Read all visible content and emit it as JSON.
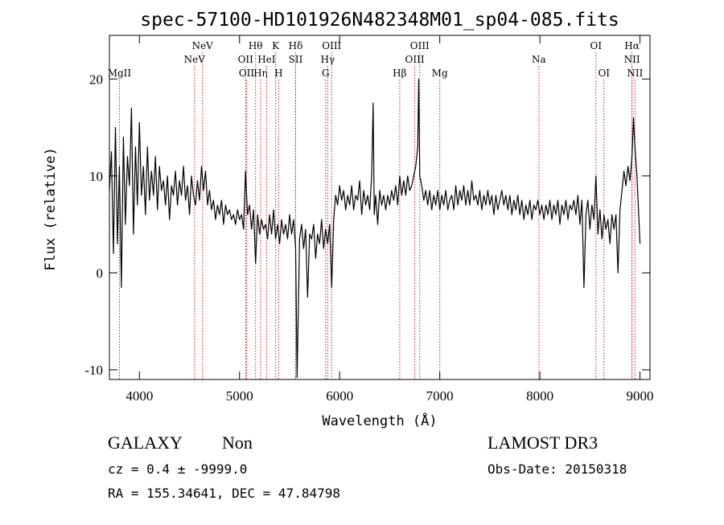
{
  "chart_data": {
    "type": "line",
    "title": "spec-57100-HD101926N482348M01_sp04-085.fits",
    "xlabel": "Wavelength (Å)",
    "ylabel": "Flux (relative)",
    "xlim": [
      3700,
      9100
    ],
    "ylim": [
      -11,
      24.5
    ],
    "xticks": [
      4000,
      5000,
      6000,
      7000,
      8000,
      9000
    ],
    "yticks": [
      -10,
      0,
      10,
      20
    ],
    "grid": false,
    "series": [
      {
        "color": "#000000",
        "points": [
          [
            3700,
            8.5
          ],
          [
            3720,
            12.5
          ],
          [
            3740,
            2.0
          ],
          [
            3760,
            15.0
          ],
          [
            3780,
            3.0
          ],
          [
            3800,
            11.0
          ],
          [
            3820,
            -1.5
          ],
          [
            3840,
            14.0
          ],
          [
            3860,
            5.0
          ],
          [
            3880,
            12.0
          ],
          [
            3900,
            9.0
          ],
          [
            3920,
            17.0
          ],
          [
            3940,
            4.0
          ],
          [
            3960,
            13.0
          ],
          [
            3980,
            7.0
          ],
          [
            4000,
            15.5
          ],
          [
            4020,
            8.0
          ],
          [
            4040,
            11.0
          ],
          [
            4060,
            6.0
          ],
          [
            4080,
            13.0
          ],
          [
            4100,
            7.5
          ],
          [
            4120,
            10.5
          ],
          [
            4140,
            8.0
          ],
          [
            4160,
            12.0
          ],
          [
            4180,
            6.5
          ],
          [
            4200,
            11.0
          ],
          [
            4220,
            8.5
          ],
          [
            4240,
            9.5
          ],
          [
            4260,
            7.0
          ],
          [
            4280,
            10.0
          ],
          [
            4300,
            5.5
          ],
          [
            4320,
            9.0
          ],
          [
            4340,
            8.0
          ],
          [
            4360,
            10.5
          ],
          [
            4380,
            7.0
          ],
          [
            4400,
            9.5
          ],
          [
            4420,
            8.0
          ],
          [
            4440,
            11.0
          ],
          [
            4460,
            7.5
          ],
          [
            4480,
            9.0
          ],
          [
            4500,
            6.0
          ],
          [
            4520,
            10.0
          ],
          [
            4540,
            8.0
          ],
          [
            4560,
            7.0
          ],
          [
            4580,
            9.5
          ],
          [
            4600,
            7.5
          ],
          [
            4620,
            11.0
          ],
          [
            4640,
            8.5
          ],
          [
            4660,
            10.5
          ],
          [
            4680,
            7.0
          ],
          [
            4700,
            8.5
          ],
          [
            4720,
            6.5
          ],
          [
            4740,
            7.5
          ],
          [
            4760,
            5.5
          ],
          [
            4780,
            7.0
          ],
          [
            4800,
            6.0
          ],
          [
            4820,
            7.5
          ],
          [
            4840,
            5.0
          ],
          [
            4860,
            7.0
          ],
          [
            4880,
            6.0
          ],
          [
            4900,
            6.5
          ],
          [
            4920,
            5.5
          ],
          [
            4940,
            6.0
          ],
          [
            4960,
            5.0
          ],
          [
            4980,
            6.5
          ],
          [
            5000,
            5.5
          ],
          [
            5020,
            6.0
          ],
          [
            5040,
            4.5
          ],
          [
            5060,
            10.5
          ],
          [
            5080,
            6.0
          ],
          [
            5100,
            7.0
          ],
          [
            5120,
            4.5
          ],
          [
            5140,
            6.5
          ],
          [
            5160,
            1.0
          ],
          [
            5180,
            6.0
          ],
          [
            5200,
            4.0
          ],
          [
            5220,
            5.5
          ],
          [
            5240,
            4.5
          ],
          [
            5260,
            5.0
          ],
          [
            5280,
            3.5
          ],
          [
            5300,
            6.0
          ],
          [
            5320,
            4.0
          ],
          [
            5340,
            6.5
          ],
          [
            5360,
            3.5
          ],
          [
            5380,
            5.0
          ],
          [
            5400,
            3.0
          ],
          [
            5420,
            5.5
          ],
          [
            5440,
            4.0
          ],
          [
            5460,
            5.0
          ],
          [
            5480,
            3.5
          ],
          [
            5500,
            6.0
          ],
          [
            5520,
            4.0
          ],
          [
            5540,
            5.5
          ],
          [
            5560,
            2.5
          ],
          [
            5575,
            -10.8
          ],
          [
            5585,
            -5.0
          ],
          [
            5600,
            3.5
          ],
          [
            5620,
            5.0
          ],
          [
            5640,
            2.5
          ],
          [
            5660,
            4.5
          ],
          [
            5680,
            -2.5
          ],
          [
            5700,
            4.0
          ],
          [
            5720,
            3.5
          ],
          [
            5740,
            5.0
          ],
          [
            5760,
            1.5
          ],
          [
            5780,
            4.0
          ],
          [
            5800,
            3.0
          ],
          [
            5820,
            5.5
          ],
          [
            5840,
            2.5
          ],
          [
            5860,
            4.5
          ],
          [
            5880,
            3.0
          ],
          [
            5900,
            5.0
          ],
          [
            5920,
            -1.5
          ],
          [
            5940,
            5.5
          ],
          [
            5960,
            8.0
          ],
          [
            5980,
            7.0
          ],
          [
            6000,
            9.0
          ],
          [
            6020,
            7.5
          ],
          [
            6040,
            8.5
          ],
          [
            6060,
            6.5
          ],
          [
            6080,
            8.0
          ],
          [
            6100,
            7.0
          ],
          [
            6120,
            9.0
          ],
          [
            6140,
            6.5
          ],
          [
            6160,
            8.0
          ],
          [
            6180,
            7.5
          ],
          [
            6200,
            9.5
          ],
          [
            6220,
            6.0
          ],
          [
            6240,
            8.5
          ],
          [
            6260,
            7.0
          ],
          [
            6280,
            8.0
          ],
          [
            6300,
            6.5
          ],
          [
            6320,
            10.0
          ],
          [
            6335,
            17.5
          ],
          [
            6345,
            6.0
          ],
          [
            6360,
            8.0
          ],
          [
            6380,
            5.0
          ],
          [
            6400,
            8.5
          ],
          [
            6420,
            7.0
          ],
          [
            6440,
            8.0
          ],
          [
            6460,
            6.5
          ],
          [
            6480,
            8.0
          ],
          [
            6500,
            7.0
          ],
          [
            6520,
            8.5
          ],
          [
            6540,
            7.5
          ],
          [
            6560,
            9.0
          ],
          [
            6580,
            7.0
          ],
          [
            6600,
            10.0
          ],
          [
            6620,
            8.0
          ],
          [
            6640,
            9.5
          ],
          [
            6660,
            8.0
          ],
          [
            6680,
            10.0
          ],
          [
            6700,
            8.5
          ],
          [
            6720,
            9.0
          ],
          [
            6740,
            10.0
          ],
          [
            6760,
            11.0
          ],
          [
            6780,
            13.0
          ],
          [
            6790,
            20.0
          ],
          [
            6800,
            10.0
          ],
          [
            6820,
            9.0
          ],
          [
            6840,
            7.5
          ],
          [
            6860,
            8.5
          ],
          [
            6880,
            7.0
          ],
          [
            6900,
            8.5
          ],
          [
            6920,
            6.5
          ],
          [
            6940,
            8.0
          ],
          [
            6960,
            7.0
          ],
          [
            6980,
            8.5
          ],
          [
            7000,
            6.5
          ],
          [
            7020,
            8.0
          ],
          [
            7040,
            7.0
          ],
          [
            7060,
            8.5
          ],
          [
            7080,
            6.5
          ],
          [
            7100,
            7.5
          ],
          [
            7120,
            8.0
          ],
          [
            7140,
            6.5
          ],
          [
            7160,
            9.0
          ],
          [
            7180,
            7.0
          ],
          [
            7200,
            8.5
          ],
          [
            7220,
            7.5
          ],
          [
            7240,
            9.0
          ],
          [
            7260,
            7.0
          ],
          [
            7280,
            8.5
          ],
          [
            7300,
            7.0
          ],
          [
            7320,
            9.5
          ],
          [
            7340,
            7.5
          ],
          [
            7360,
            8.0
          ],
          [
            7380,
            7.0
          ],
          [
            7400,
            8.5
          ],
          [
            7420,
            6.5
          ],
          [
            7440,
            8.0
          ],
          [
            7460,
            7.0
          ],
          [
            7480,
            8.5
          ],
          [
            7500,
            7.0
          ],
          [
            7520,
            8.0
          ],
          [
            7540,
            6.0
          ],
          [
            7560,
            8.0
          ],
          [
            7580,
            6.5
          ],
          [
            7600,
            7.5
          ],
          [
            7620,
            8.5
          ],
          [
            7640,
            7.0
          ],
          [
            7660,
            8.0
          ],
          [
            7680,
            6.5
          ],
          [
            7700,
            8.0
          ],
          [
            7720,
            6.0
          ],
          [
            7740,
            7.5
          ],
          [
            7760,
            6.5
          ],
          [
            7780,
            8.0
          ],
          [
            7800,
            6.0
          ],
          [
            7820,
            7.5
          ],
          [
            7840,
            5.5
          ],
          [
            7860,
            7.0
          ],
          [
            7880,
            6.0
          ],
          [
            7900,
            7.5
          ],
          [
            7920,
            5.5
          ],
          [
            7940,
            7.0
          ],
          [
            7960,
            6.5
          ],
          [
            7980,
            7.5
          ],
          [
            8000,
            6.0
          ],
          [
            8020,
            7.0
          ],
          [
            8040,
            5.5
          ],
          [
            8060,
            7.0
          ],
          [
            8080,
            6.0
          ],
          [
            8100,
            7.5
          ],
          [
            8120,
            5.5
          ],
          [
            8140,
            7.0
          ],
          [
            8160,
            6.0
          ],
          [
            8180,
            7.5
          ],
          [
            8200,
            5.0
          ],
          [
            8220,
            7.0
          ],
          [
            8240,
            6.0
          ],
          [
            8260,
            7.5
          ],
          [
            8280,
            5.5
          ],
          [
            8300,
            7.0
          ],
          [
            8320,
            6.5
          ],
          [
            8340,
            7.5
          ],
          [
            8360,
            6.0
          ],
          [
            8380,
            8.0
          ],
          [
            8400,
            5.0
          ],
          [
            8420,
            7.5
          ],
          [
            8440,
            -1.5
          ],
          [
            8460,
            6.0
          ],
          [
            8480,
            7.5
          ],
          [
            8500,
            4.5
          ],
          [
            8520,
            7.0
          ],
          [
            8540,
            5.5
          ],
          [
            8560,
            10.0
          ],
          [
            8580,
            4.0
          ],
          [
            8600,
            6.5
          ],
          [
            8620,
            3.5
          ],
          [
            8640,
            6.0
          ],
          [
            8660,
            4.5
          ],
          [
            8680,
            5.5
          ],
          [
            8700,
            3.0
          ],
          [
            8720,
            6.0
          ],
          [
            8740,
            4.5
          ],
          [
            8760,
            6.0
          ],
          [
            8780,
            0.0
          ],
          [
            8800,
            6.5
          ],
          [
            8820,
            8.5
          ],
          [
            8840,
            10.5
          ],
          [
            8860,
            9.0
          ],
          [
            8880,
            11.0
          ],
          [
            8900,
            9.5
          ],
          [
            8920,
            12.0
          ],
          [
            8935,
            16.0
          ],
          [
            8950,
            13.0
          ],
          [
            8970,
            10.0
          ],
          [
            9000,
            3.0
          ]
        ]
      }
    ],
    "emission_lines": [
      {
        "label": "MgII",
        "x": 3800,
        "row": 3
      },
      {
        "label": "NeV",
        "x": 4550,
        "row": 2
      },
      {
        "label": "NeV",
        "x": 4630,
        "row": 1
      },
      {
        "label": "OII",
        "x": 5060,
        "row": 2
      },
      {
        "label": "OII",
        "x": 5070,
        "row": 3
      },
      {
        "label": "Hθ",
        "x": 5160,
        "row": 1
      },
      {
        "label": "Hη",
        "x": 5210,
        "row": 3
      },
      {
        "label": "HeI",
        "x": 5270,
        "row": 2
      },
      {
        "label": "K",
        "x": 5360,
        "row": 1
      },
      {
        "label": "H",
        "x": 5390,
        "row": 3
      },
      {
        "label": "Hδ",
        "x": 5560,
        "row": 1
      },
      {
        "label": "SII",
        "x": 5560,
        "row": 2
      },
      {
        "label": "OIII",
        "x": 5920,
        "row": 1
      },
      {
        "label": "Hγ",
        "x": 5880,
        "row": 2
      },
      {
        "label": "G",
        "x": 5860,
        "row": 3
      },
      {
        "label": "OIII",
        "x": 6800,
        "row": 1
      },
      {
        "label": "OIII",
        "x": 6750,
        "row": 2
      },
      {
        "label": "Hβ",
        "x": 6600,
        "row": 3
      },
      {
        "label": "Mg",
        "x": 7000,
        "row": 3
      },
      {
        "label": "Na",
        "x": 7990,
        "row": 2
      },
      {
        "label": "OI",
        "x": 8560,
        "row": 1
      },
      {
        "label": "OI",
        "x": 8640,
        "row": 3
      },
      {
        "label": "Hα",
        "x": 8920,
        "row": 1
      },
      {
        "label": "NII",
        "x": 8920,
        "row": 2
      },
      {
        "label": "NII",
        "x": 8950,
        "row": 3
      }
    ]
  },
  "info": {
    "object_class": "GALAXY",
    "subclass": "Non",
    "survey": "LAMOST DR3",
    "cz_line": "cz = 0.4 ± -9999.0",
    "obs_date": "Obs-Date: 20150318",
    "coords": "RA = 155.34641, DEC =  47.84798"
  }
}
